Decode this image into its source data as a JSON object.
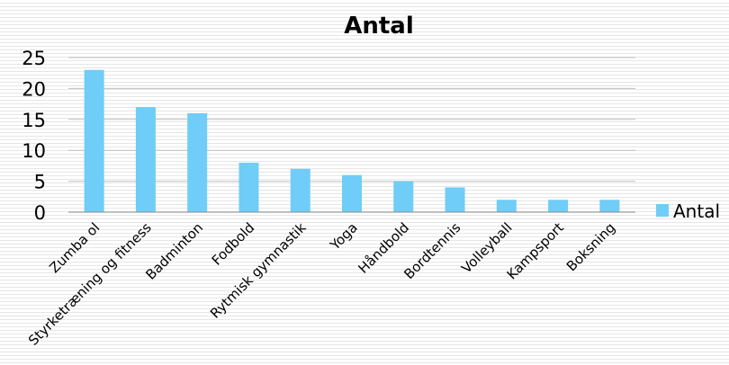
{
  "chart_data": {
    "type": "bar",
    "title": "Antal",
    "xlabel": "",
    "ylabel": "",
    "categories": [
      "Zumba ol",
      "Styrketræning og fitness",
      "Badminton",
      "Fodbold",
      "Rytmisk gymnastik",
      "Yoga",
      "Håndbold",
      "Bordtennis",
      "Volleyball",
      "Kampsport",
      "Boksning"
    ],
    "series": [
      {
        "name": "Antal",
        "values": [
          23,
          17,
          16,
          8,
          7,
          6,
          5,
          4,
          2,
          2,
          2
        ]
      }
    ],
    "ylim": [
      0,
      25
    ],
    "yticks": [
      0,
      5,
      10,
      15,
      20,
      25
    ],
    "grid": true,
    "legend_position": "right",
    "colors": {
      "bar": "#6fcdf7",
      "grid": "#c0c0c0",
      "axis": "#8c8c8c"
    }
  }
}
